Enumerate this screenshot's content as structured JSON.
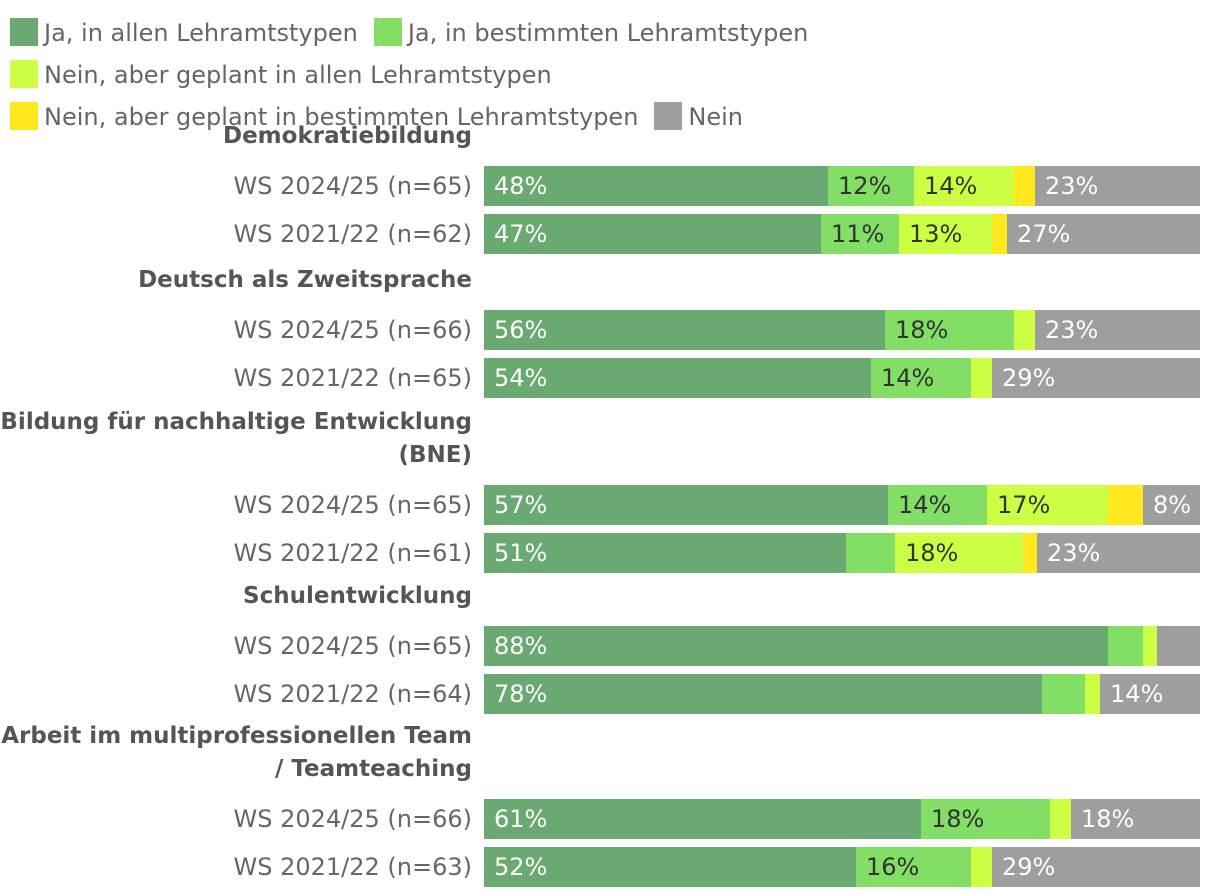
{
  "legend": [
    {
      "label": "Ja, in allen Lehramtstypen",
      "color": "#6aaa72"
    },
    {
      "label": "Ja, in bestimmten Lehramtstypen",
      "color": "#82de64"
    },
    {
      "label": "Nein, aber geplant in allen Lehramtstypen",
      "color": "#ccff44"
    },
    {
      "label": "Nein, aber geplant in bestimmten Lehramtstypen",
      "color": "#ffe81e"
    },
    {
      "label": "Nein",
      "color": "#9e9e9e"
    }
  ],
  "chart_data": {
    "type": "bar",
    "orientation": "horizontal",
    "stacked": true,
    "unit": "%",
    "xlim": [
      0,
      100
    ],
    "grid": false,
    "legend_position": "top",
    "series": [
      {
        "name": "Ja, in allen Lehramtstypen",
        "color": "#6aaa72"
      },
      {
        "name": "Ja, in bestimmten Lehramtstypen",
        "color": "#82de64"
      },
      {
        "name": "Nein, aber geplant in allen Lehramtstypen",
        "color": "#ccff44"
      },
      {
        "name": "Nein, aber geplant in bestimmten Lehramtstypen",
        "color": "#ffe81e"
      },
      {
        "name": "Nein",
        "color": "#9e9e9e"
      }
    ],
    "groups": [
      {
        "title": "Demokratiebildung",
        "rows": [
          {
            "label": "WS 2024/25 (n=65)",
            "values": [
              48,
              12,
              14,
              3,
              23
            ],
            "labels": [
              "48%",
              "12%",
              "14%",
              "",
              "23%"
            ]
          },
          {
            "label": "WS 2021/22 (n=62)",
            "values": [
              47,
              11,
              13,
              2,
              27
            ],
            "labels": [
              "47%",
              "11%",
              "13%",
              "",
              "27%"
            ]
          }
        ]
      },
      {
        "title": "Deutsch als Zweitsprache",
        "rows": [
          {
            "label": "WS 2024/25 (n=66)",
            "values": [
              56,
              18,
              3,
              0,
              23
            ],
            "labels": [
              "56%",
              "18%",
              "",
              "",
              "23%"
            ]
          },
          {
            "label": "WS 2021/22 (n=65)",
            "values": [
              54,
              14,
              3,
              0,
              29
            ],
            "labels": [
              "54%",
              "14%",
              "",
              "",
              "29%"
            ]
          }
        ]
      },
      {
        "title": "Bildung für nachhaltige Entwicklung (BNE)",
        "rows": [
          {
            "label": "WS 2024/25 (n=65)",
            "values": [
              57,
              14,
              17,
              5,
              8
            ],
            "labels": [
              "57%",
              "14%",
              "17%",
              "",
              "8%"
            ]
          },
          {
            "label": "WS 2021/22 (n=61)",
            "values": [
              51,
              7,
              18,
              2,
              23
            ],
            "labels": [
              "51%",
              "",
              "18%",
              "",
              "23%"
            ]
          }
        ]
      },
      {
        "title": "Schulentwicklung",
        "rows": [
          {
            "label": "WS 2024/25 (n=65)",
            "values": [
              88,
              5,
              2,
              0,
              6
            ],
            "labels": [
              "88%",
              "",
              "",
              "",
              ""
            ]
          },
          {
            "label": "WS 2021/22 (n=64)",
            "values": [
              78,
              6,
              2,
              0,
              14
            ],
            "labels": [
              "78%",
              "",
              "",
              "",
              "14%"
            ]
          }
        ]
      },
      {
        "title": "Arbeit im multiprofessionellen Team / Teamteaching",
        "rows": [
          {
            "label": "WS 2024/25 (n=66)",
            "values": [
              61,
              18,
              3,
              0,
              18
            ],
            "labels": [
              "61%",
              "18%",
              "",
              "",
              "18%"
            ]
          },
          {
            "label": "WS 2021/22 (n=63)",
            "values": [
              52,
              16,
              3,
              0,
              29
            ],
            "labels": [
              "52%",
              "16%",
              "",
              "",
              "29%"
            ]
          }
        ]
      }
    ]
  }
}
